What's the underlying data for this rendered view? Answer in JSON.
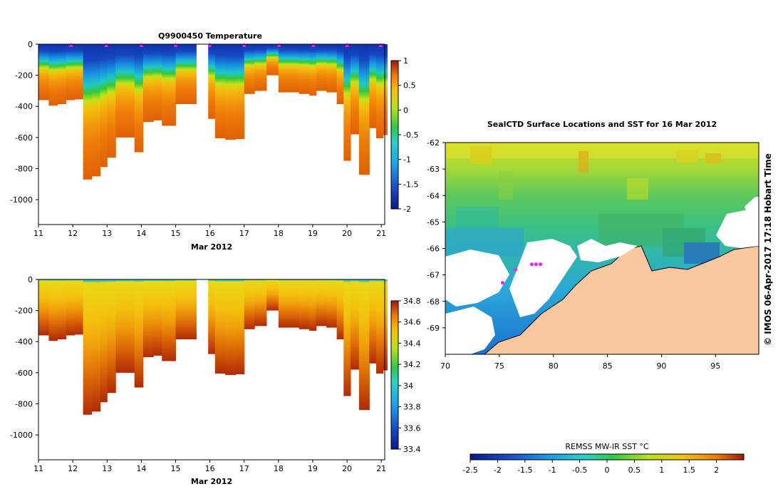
{
  "chart_data": [
    {
      "type": "heatmap",
      "title": "Q9900450  Temperature",
      "xlabel": "Mar 2012",
      "ylabel": "",
      "x_ticks": [
        "11",
        "12",
        "13",
        "14",
        "15",
        "16",
        "17",
        "18",
        "19",
        "20",
        "21"
      ],
      "y_ticks": [
        "0",
        "-200",
        "-400",
        "-600",
        "-800",
        "-1000"
      ],
      "xlim": [
        11.0,
        21.1
      ],
      "ylim": [
        -1160,
        0
      ],
      "colorbar": {
        "min": -2,
        "max": 1,
        "ticks": [
          "1",
          "0.5",
          "0",
          "-0.5",
          "-1",
          "-1.5",
          "-2"
        ]
      },
      "surface_markers_days": [
        11.95,
        12.98,
        14.0,
        15.0,
        16.0,
        17.0,
        18.02,
        19.02,
        20.0,
        20.98
      ],
      "profiles": [
        {
          "day": 11.0,
          "depth": 360
        },
        {
          "day": 11.3,
          "depth": 395
        },
        {
          "day": 11.55,
          "depth": 385
        },
        {
          "day": 11.8,
          "depth": 360
        },
        {
          "day": 12.05,
          "depth": 355
        },
        {
          "day": 12.3,
          "depth": 870
        },
        {
          "day": 12.55,
          "depth": 850
        },
        {
          "day": 12.8,
          "depth": 790
        },
        {
          "day": 13.0,
          "depth": 730
        },
        {
          "day": 13.25,
          "depth": 600
        },
        {
          "day": 13.55,
          "depth": 600
        },
        {
          "day": 13.8,
          "depth": 695
        },
        {
          "day": 14.05,
          "depth": 500
        },
        {
          "day": 14.35,
          "depth": 490
        },
        {
          "day": 14.6,
          "depth": 525
        },
        {
          "day": 15.0,
          "depth": 385
        },
        {
          "day": 15.3,
          "depth": 385
        },
        {
          "day": 15.95,
          "depth": 480
        },
        {
          "day": 16.15,
          "depth": 605
        },
        {
          "day": 16.45,
          "depth": 615
        },
        {
          "day": 16.75,
          "depth": 610
        },
        {
          "day": 17.0,
          "depth": 320
        },
        {
          "day": 17.3,
          "depth": 300
        },
        {
          "day": 17.65,
          "depth": 200
        },
        {
          "day": 18.0,
          "depth": 310
        },
        {
          "day": 18.35,
          "depth": 310
        },
        {
          "day": 18.6,
          "depth": 320
        },
        {
          "day": 18.9,
          "depth": 330
        },
        {
          "day": 19.1,
          "depth": 300
        },
        {
          "day": 19.4,
          "depth": 310
        },
        {
          "day": 19.7,
          "depth": 385
        },
        {
          "day": 19.9,
          "depth": 750
        },
        {
          "day": 20.1,
          "depth": 580
        },
        {
          "day": 20.35,
          "depth": 840
        },
        {
          "day": 20.65,
          "depth": 540
        },
        {
          "day": 20.85,
          "depth": 605
        },
        {
          "day": 21.05,
          "depth": 585
        }
      ]
    },
    {
      "type": "heatmap",
      "title": "",
      "xlabel": "Mar 2012",
      "ylabel": "",
      "x_ticks": [
        "11",
        "12",
        "13",
        "14",
        "15",
        "16",
        "17",
        "18",
        "19",
        "20",
        "21"
      ],
      "y_ticks": [
        "0",
        "-200",
        "-400",
        "-600",
        "-800",
        "-1000"
      ],
      "xlim": [
        11.0,
        21.1
      ],
      "ylim": [
        -1160,
        0
      ],
      "colorbar": {
        "min": 33.4,
        "max": 34.8,
        "ticks": [
          "34.8",
          "34.6",
          "34.4",
          "34.2",
          "34",
          "33.8",
          "33.6",
          "33.4"
        ]
      }
    },
    {
      "type": "heatmap",
      "title": "SealCTD Surface Locations and SST for 16 Mar 2012",
      "xlabel": "",
      "ylabel": "",
      "x_ticks": [
        "70",
        "75",
        "80",
        "85",
        "90",
        "95"
      ],
      "y_ticks": [
        "-62",
        "-63",
        "-64",
        "-65",
        "-66",
        "-67",
        "-68",
        "-69"
      ],
      "xlim": [
        70,
        99
      ],
      "ylim": [
        -70,
        -62
      ],
      "colorbar": {
        "label": "REMSS MW-IR SST °C",
        "min": -2.5,
        "max": 2.5,
        "ticks": [
          "-2.5",
          "-2",
          "-1.5",
          "-1",
          "-0.5",
          "0",
          "0.5",
          "1",
          "1.5",
          "2"
        ]
      },
      "seal_locations": [
        {
          "lon": 78.0,
          "lat": -66.6
        },
        {
          "lon": 78.4,
          "lat": -66.6
        },
        {
          "lon": 78.8,
          "lat": -66.6
        },
        {
          "lon": 76.5,
          "lat": -66.8
        },
        {
          "lon": 75.3,
          "lat": -67.3
        }
      ],
      "side_label": "©  IMOS 06-Apr-2017 17:18 Hobart Time"
    }
  ]
}
